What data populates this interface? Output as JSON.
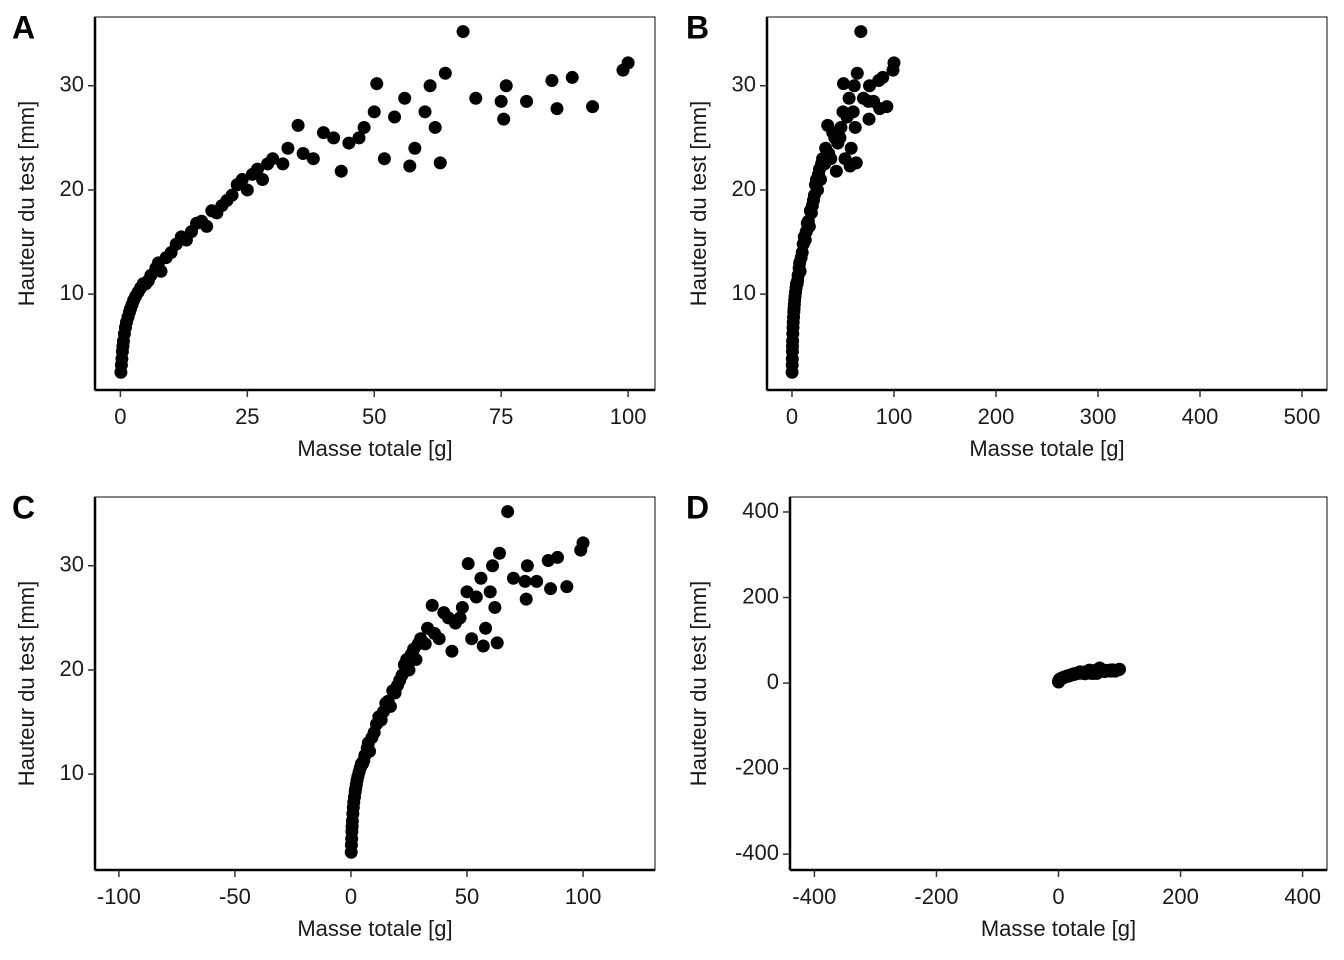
{
  "chart_data": [
    {
      "type": "scatter",
      "panel": "A",
      "x_label": "Masse totale  [g]",
      "y_label": "Hauteur du test  [mm]",
      "color": "#000000",
      "xlim": [
        -5,
        105.3
      ],
      "ylim": [
        0.8,
        36.6
      ],
      "xticks": [
        0,
        25,
        50,
        75,
        100
      ],
      "yticks": [
        10,
        20,
        30
      ],
      "x": [
        0.1,
        0.2,
        0.3,
        0.4,
        0.5,
        0.6,
        0.8,
        1,
        1.2,
        1.5,
        1.8,
        2,
        2.3,
        2.6,
        3,
        3.5,
        4,
        4.5,
        5,
        5.5,
        6,
        7,
        7.5,
        8,
        9,
        10,
        11,
        12,
        13,
        14,
        15,
        16,
        17,
        18,
        19,
        20,
        21,
        22,
        23,
        24,
        25,
        26,
        27,
        28,
        29,
        30,
        32,
        33,
        35,
        36,
        38,
        40,
        42,
        43.5,
        45,
        47,
        48,
        50,
        50.5,
        52,
        54,
        56,
        57,
        58,
        60,
        61,
        62,
        63,
        64,
        67.5,
        70,
        75,
        75.5,
        76,
        80,
        85,
        86,
        89,
        93,
        99,
        100
      ],
      "y": [
        2.5,
        3.2,
        3.8,
        4.5,
        5,
        5.5,
        6.2,
        6.8,
        7.3,
        7.8,
        8.3,
        8.6,
        9,
        9.4,
        9.8,
        10.2,
        10.6,
        11,
        11,
        11.3,
        11.8,
        12.5,
        13,
        12.2,
        13.5,
        14,
        14.8,
        15.5,
        15.2,
        16,
        16.8,
        17,
        16.5,
        18,
        17.8,
        18.5,
        19,
        19.5,
        20.5,
        21,
        20,
        21.5,
        22,
        21,
        22.5,
        23,
        22.5,
        24,
        26.2,
        23.5,
        23,
        25.5,
        25,
        21.8,
        24.5,
        25,
        26,
        27.5,
        30.2,
        23,
        27,
        28.8,
        22.3,
        24,
        27.5,
        30,
        26,
        22.6,
        31.2,
        35.2,
        28.8,
        28.5,
        26.8,
        30,
        28.5,
        30.5,
        27.8,
        30.8,
        28,
        31.5,
        32.2
      ]
    },
    {
      "type": "scatter",
      "panel": "B",
      "x_label": "Masse totale  [g]",
      "y_label": "Hauteur du test  [mm]",
      "color": "#000000",
      "xlim": [
        -24.5,
        524.5
      ],
      "ylim": [
        0.8,
        36.6
      ],
      "xticks": [
        0,
        100,
        200,
        300,
        400,
        500
      ],
      "yticks": [
        10,
        20,
        30
      ],
      "x": [
        0.1,
        0.2,
        0.3,
        0.4,
        0.5,
        0.6,
        0.8,
        1,
        1.2,
        1.5,
        1.8,
        2,
        2.3,
        2.6,
        3,
        3.5,
        4,
        4.5,
        5,
        5.5,
        6,
        7,
        7.5,
        8,
        9,
        10,
        11,
        12,
        13,
        14,
        15,
        16,
        17,
        18,
        19,
        20,
        21,
        22,
        23,
        24,
        25,
        26,
        27,
        28,
        29,
        30,
        32,
        33,
        35,
        36,
        38,
        40,
        42,
        43.5,
        45,
        47,
        48,
        50,
        50.5,
        52,
        54,
        56,
        57,
        58,
        60,
        61,
        62,
        63,
        64,
        67.5,
        70,
        75,
        75.5,
        76,
        80,
        85,
        86,
        89,
        93,
        99,
        100
      ],
      "y": [
        2.5,
        3.2,
        3.8,
        4.5,
        5,
        5.5,
        6.2,
        6.8,
        7.3,
        7.8,
        8.3,
        8.6,
        9,
        9.4,
        9.8,
        10.2,
        10.6,
        11,
        11,
        11.3,
        11.8,
        12.5,
        13,
        12.2,
        13.5,
        14,
        14.8,
        15.5,
        15.2,
        16,
        16.8,
        17,
        16.5,
        18,
        17.8,
        18.5,
        19,
        19.5,
        20.5,
        21,
        20,
        21.5,
        22,
        21,
        22.5,
        23,
        22.5,
        24,
        26.2,
        23.5,
        23,
        25.5,
        25,
        21.8,
        24.5,
        25,
        26,
        27.5,
        30.2,
        23,
        27,
        28.8,
        22.3,
        24,
        27.5,
        30,
        26,
        22.6,
        31.2,
        35.2,
        28.8,
        28.5,
        26.8,
        30,
        28.5,
        30.5,
        27.8,
        30.8,
        28,
        31.5,
        32.2
      ]
    },
    {
      "type": "scatter",
      "panel": "C",
      "x_label": "Masse totale  [g]",
      "y_label": "Hauteur du test  [mm]",
      "color": "#000000",
      "xlim": [
        -110.3,
        131
      ],
      "ylim": [
        0.8,
        36.6
      ],
      "xticks": [
        -100,
        -50,
        0,
        50,
        100
      ],
      "yticks": [
        10,
        20,
        30
      ],
      "x": [
        0.1,
        0.2,
        0.3,
        0.4,
        0.5,
        0.6,
        0.8,
        1,
        1.2,
        1.5,
        1.8,
        2,
        2.3,
        2.6,
        3,
        3.5,
        4,
        4.5,
        5,
        5.5,
        6,
        7,
        7.5,
        8,
        9,
        10,
        11,
        12,
        13,
        14,
        15,
        16,
        17,
        18,
        19,
        20,
        21,
        22,
        23,
        24,
        25,
        26,
        27,
        28,
        29,
        30,
        32,
        33,
        35,
        36,
        38,
        40,
        42,
        43.5,
        45,
        47,
        48,
        50,
        50.5,
        52,
        54,
        56,
        57,
        58,
        60,
        61,
        62,
        63,
        64,
        67.5,
        70,
        75,
        75.5,
        76,
        80,
        85,
        86,
        89,
        93,
        99,
        100
      ],
      "y": [
        2.5,
        3.2,
        3.8,
        4.5,
        5,
        5.5,
        6.2,
        6.8,
        7.3,
        7.8,
        8.3,
        8.6,
        9,
        9.4,
        9.8,
        10.2,
        10.6,
        11,
        11,
        11.3,
        11.8,
        12.5,
        13,
        12.2,
        13.5,
        14,
        14.8,
        15.5,
        15.2,
        16,
        16.8,
        17,
        16.5,
        18,
        17.8,
        18.5,
        19,
        19.5,
        20.5,
        21,
        20,
        21.5,
        22,
        21,
        22.5,
        23,
        22.5,
        24,
        26.2,
        23.5,
        23,
        25.5,
        25,
        21.8,
        24.5,
        25,
        26,
        27.5,
        30.2,
        23,
        27,
        28.8,
        22.3,
        24,
        27.5,
        30,
        26,
        22.6,
        31.2,
        35.2,
        28.8,
        28.5,
        26.8,
        30,
        28.5,
        30.5,
        27.8,
        30.8,
        28,
        31.5,
        32.2
      ]
    },
    {
      "type": "scatter",
      "panel": "D",
      "x_label": "Masse totale  [g]",
      "y_label": "Hauteur du test  [mm]",
      "color": "#000000",
      "xlim": [
        -440,
        440
      ],
      "ylim": [
        -437,
        435
      ],
      "xticks": [
        -400,
        -200,
        0,
        200,
        400
      ],
      "yticks": [
        -400,
        -200,
        0,
        200,
        400
      ],
      "x": [
        0.1,
        0.2,
        0.3,
        0.4,
        0.5,
        0.6,
        0.8,
        1,
        1.2,
        1.5,
        1.8,
        2,
        2.3,
        2.6,
        3,
        3.5,
        4,
        4.5,
        5,
        5.5,
        6,
        7,
        7.5,
        8,
        9,
        10,
        11,
        12,
        13,
        14,
        15,
        16,
        17,
        18,
        19,
        20,
        21,
        22,
        23,
        24,
        25,
        26,
        27,
        28,
        29,
        30,
        32,
        33,
        35,
        36,
        38,
        40,
        42,
        43.5,
        45,
        47,
        48,
        50,
        50.5,
        52,
        54,
        56,
        57,
        58,
        60,
        61,
        62,
        63,
        64,
        67.5,
        70,
        75,
        75.5,
        76,
        80,
        85,
        86,
        89,
        93,
        99,
        100
      ],
      "y": [
        2.5,
        3.2,
        3.8,
        4.5,
        5,
        5.5,
        6.2,
        6.8,
        7.3,
        7.8,
        8.3,
        8.6,
        9,
        9.4,
        9.8,
        10.2,
        10.6,
        11,
        11,
        11.3,
        11.8,
        12.5,
        13,
        12.2,
        13.5,
        14,
        14.8,
        15.5,
        15.2,
        16,
        16.8,
        17,
        16.5,
        18,
        17.8,
        18.5,
        19,
        19.5,
        20.5,
        21,
        20,
        21.5,
        22,
        21,
        22.5,
        23,
        22.5,
        24,
        26.2,
        23.5,
        23,
        25.5,
        25,
        21.8,
        24.5,
        25,
        26,
        27.5,
        30.2,
        23,
        27,
        28.8,
        22.3,
        24,
        27.5,
        30,
        26,
        22.6,
        31.2,
        35.2,
        28.8,
        28.5,
        26.8,
        30,
        28.5,
        30.5,
        27.8,
        30.8,
        28,
        31.5,
        32.2
      ]
    }
  ]
}
